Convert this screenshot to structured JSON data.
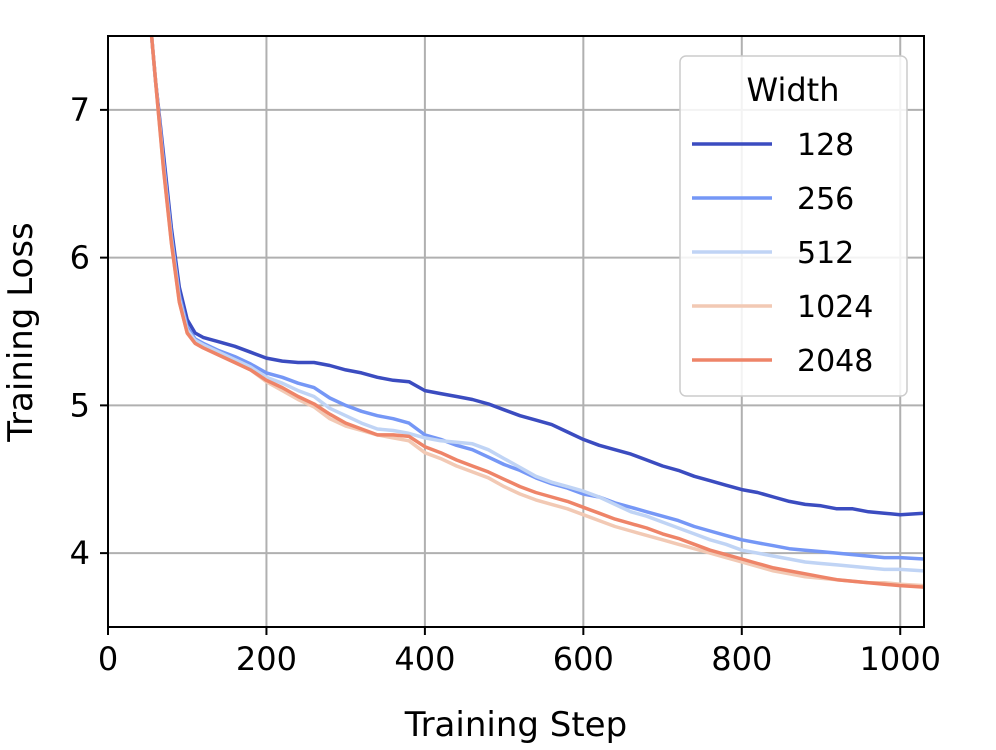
{
  "chart_data": {
    "type": "line",
    "xlabel": "Training Step",
    "ylabel": "Training Loss",
    "xlim": [
      0,
      1030
    ],
    "ylim": [
      3.5,
      7.5
    ],
    "xticks": [
      0,
      200,
      400,
      600,
      800,
      1000
    ],
    "yticks": [
      4,
      5,
      6,
      7
    ],
    "grid": true,
    "legend": {
      "title": "Width",
      "placement": "top-right"
    },
    "series": [
      {
        "name": "128",
        "color": "#3b4cc0",
        "points": [
          [
            55,
            7.5
          ],
          [
            60,
            7.2
          ],
          [
            70,
            6.7
          ],
          [
            80,
            6.2
          ],
          [
            90,
            5.8
          ],
          [
            100,
            5.58
          ],
          [
            110,
            5.49
          ],
          [
            120,
            5.46
          ],
          [
            140,
            5.43
          ],
          [
            160,
            5.4
          ],
          [
            180,
            5.36
          ],
          [
            200,
            5.32
          ],
          [
            220,
            5.3
          ],
          [
            240,
            5.29
          ],
          [
            260,
            5.29
          ],
          [
            280,
            5.27
          ],
          [
            300,
            5.24
          ],
          [
            320,
            5.22
          ],
          [
            340,
            5.19
          ],
          [
            360,
            5.17
          ],
          [
            380,
            5.16
          ],
          [
            400,
            5.1
          ],
          [
            420,
            5.08
          ],
          [
            440,
            5.06
          ],
          [
            460,
            5.04
          ],
          [
            480,
            5.01
          ],
          [
            500,
            4.97
          ],
          [
            520,
            4.93
          ],
          [
            540,
            4.9
          ],
          [
            560,
            4.87
          ],
          [
            580,
            4.82
          ],
          [
            600,
            4.77
          ],
          [
            620,
            4.73
          ],
          [
            640,
            4.7
          ],
          [
            660,
            4.67
          ],
          [
            680,
            4.63
          ],
          [
            700,
            4.59
          ],
          [
            720,
            4.56
          ],
          [
            740,
            4.52
          ],
          [
            760,
            4.49
          ],
          [
            780,
            4.46
          ],
          [
            800,
            4.43
          ],
          [
            820,
            4.41
          ],
          [
            840,
            4.38
          ],
          [
            860,
            4.35
          ],
          [
            880,
            4.33
          ],
          [
            900,
            4.32
          ],
          [
            920,
            4.3
          ],
          [
            940,
            4.3
          ],
          [
            960,
            4.28
          ],
          [
            980,
            4.27
          ],
          [
            1000,
            4.26
          ],
          [
            1030,
            4.27
          ]
        ]
      },
      {
        "name": "256",
        "color": "#7597f6",
        "points": [
          [
            55,
            7.5
          ],
          [
            60,
            7.2
          ],
          [
            70,
            6.65
          ],
          [
            80,
            6.15
          ],
          [
            90,
            5.75
          ],
          [
            100,
            5.53
          ],
          [
            110,
            5.45
          ],
          [
            120,
            5.42
          ],
          [
            140,
            5.37
          ],
          [
            160,
            5.33
          ],
          [
            180,
            5.28
          ],
          [
            200,
            5.22
          ],
          [
            220,
            5.19
          ],
          [
            240,
            5.15
          ],
          [
            260,
            5.12
          ],
          [
            280,
            5.05
          ],
          [
            300,
            5.0
          ],
          [
            320,
            4.96
          ],
          [
            340,
            4.93
          ],
          [
            360,
            4.91
          ],
          [
            380,
            4.88
          ],
          [
            400,
            4.8
          ],
          [
            420,
            4.77
          ],
          [
            440,
            4.73
          ],
          [
            460,
            4.7
          ],
          [
            480,
            4.65
          ],
          [
            500,
            4.6
          ],
          [
            520,
            4.56
          ],
          [
            540,
            4.51
          ],
          [
            560,
            4.47
          ],
          [
            580,
            4.44
          ],
          [
            600,
            4.4
          ],
          [
            620,
            4.38
          ],
          [
            640,
            4.34
          ],
          [
            660,
            4.31
          ],
          [
            680,
            4.28
          ],
          [
            700,
            4.25
          ],
          [
            720,
            4.22
          ],
          [
            740,
            4.18
          ],
          [
            760,
            4.15
          ],
          [
            780,
            4.12
          ],
          [
            800,
            4.09
          ],
          [
            820,
            4.07
          ],
          [
            840,
            4.05
          ],
          [
            860,
            4.03
          ],
          [
            880,
            4.02
          ],
          [
            900,
            4.01
          ],
          [
            920,
            4.0
          ],
          [
            940,
            3.99
          ],
          [
            960,
            3.98
          ],
          [
            980,
            3.97
          ],
          [
            1000,
            3.97
          ],
          [
            1030,
            3.96
          ]
        ]
      },
      {
        "name": "512",
        "color": "#c0d4f5",
        "points": [
          [
            55,
            7.5
          ],
          [
            60,
            7.2
          ],
          [
            70,
            6.62
          ],
          [
            80,
            6.12
          ],
          [
            90,
            5.72
          ],
          [
            100,
            5.51
          ],
          [
            110,
            5.44
          ],
          [
            120,
            5.41
          ],
          [
            140,
            5.36
          ],
          [
            160,
            5.31
          ],
          [
            180,
            5.26
          ],
          [
            200,
            5.19
          ],
          [
            220,
            5.15
          ],
          [
            240,
            5.1
          ],
          [
            260,
            5.06
          ],
          [
            280,
            4.98
          ],
          [
            300,
            4.93
          ],
          [
            320,
            4.88
          ],
          [
            340,
            4.84
          ],
          [
            360,
            4.83
          ],
          [
            380,
            4.81
          ],
          [
            400,
            4.78
          ],
          [
            420,
            4.76
          ],
          [
            440,
            4.75
          ],
          [
            460,
            4.74
          ],
          [
            480,
            4.7
          ],
          [
            500,
            4.64
          ],
          [
            520,
            4.58
          ],
          [
            540,
            4.52
          ],
          [
            560,
            4.48
          ],
          [
            580,
            4.45
          ],
          [
            600,
            4.42
          ],
          [
            620,
            4.38
          ],
          [
            640,
            4.33
          ],
          [
            660,
            4.28
          ],
          [
            680,
            4.25
          ],
          [
            700,
            4.21
          ],
          [
            720,
            4.17
          ],
          [
            740,
            4.13
          ],
          [
            760,
            4.09
          ],
          [
            780,
            4.06
          ],
          [
            800,
            4.02
          ],
          [
            820,
            4.0
          ],
          [
            840,
            3.98
          ],
          [
            860,
            3.96
          ],
          [
            880,
            3.94
          ],
          [
            900,
            3.93
          ],
          [
            920,
            3.92
          ],
          [
            940,
            3.91
          ],
          [
            960,
            3.9
          ],
          [
            980,
            3.89
          ],
          [
            1000,
            3.89
          ],
          [
            1030,
            3.88
          ]
        ]
      },
      {
        "name": "1024",
        "color": "#f2c9b4",
        "points": [
          [
            55,
            7.5
          ],
          [
            60,
            7.2
          ],
          [
            70,
            6.6
          ],
          [
            80,
            6.1
          ],
          [
            90,
            5.7
          ],
          [
            100,
            5.49
          ],
          [
            110,
            5.42
          ],
          [
            120,
            5.39
          ],
          [
            140,
            5.34
          ],
          [
            160,
            5.29
          ],
          [
            180,
            5.24
          ],
          [
            200,
            5.16
          ],
          [
            220,
            5.1
          ],
          [
            240,
            5.04
          ],
          [
            260,
            4.99
          ],
          [
            280,
            4.91
          ],
          [
            300,
            4.86
          ],
          [
            320,
            4.83
          ],
          [
            340,
            4.8
          ],
          [
            360,
            4.78
          ],
          [
            380,
            4.76
          ],
          [
            400,
            4.68
          ],
          [
            420,
            4.64
          ],
          [
            440,
            4.59
          ],
          [
            460,
            4.55
          ],
          [
            480,
            4.51
          ],
          [
            500,
            4.45
          ],
          [
            520,
            4.4
          ],
          [
            540,
            4.36
          ],
          [
            560,
            4.33
          ],
          [
            580,
            4.3
          ],
          [
            600,
            4.26
          ],
          [
            620,
            4.22
          ],
          [
            640,
            4.18
          ],
          [
            660,
            4.15
          ],
          [
            680,
            4.12
          ],
          [
            700,
            4.09
          ],
          [
            720,
            4.06
          ],
          [
            740,
            4.03
          ],
          [
            760,
            4.0
          ],
          [
            780,
            3.97
          ],
          [
            800,
            3.94
          ],
          [
            820,
            3.91
          ],
          [
            840,
            3.88
          ],
          [
            860,
            3.86
          ],
          [
            880,
            3.84
          ],
          [
            900,
            3.83
          ],
          [
            920,
            3.82
          ],
          [
            940,
            3.81
          ],
          [
            960,
            3.8
          ],
          [
            980,
            3.8
          ],
          [
            1000,
            3.79
          ],
          [
            1030,
            3.78
          ]
        ]
      },
      {
        "name": "2048",
        "color": "#ee8468",
        "points": [
          [
            55,
            7.5
          ],
          [
            60,
            7.2
          ],
          [
            70,
            6.6
          ],
          [
            80,
            6.1
          ],
          [
            90,
            5.7
          ],
          [
            100,
            5.49
          ],
          [
            110,
            5.42
          ],
          [
            120,
            5.39
          ],
          [
            140,
            5.34
          ],
          [
            160,
            5.29
          ],
          [
            180,
            5.24
          ],
          [
            200,
            5.17
          ],
          [
            220,
            5.12
          ],
          [
            240,
            5.06
          ],
          [
            260,
            5.01
          ],
          [
            280,
            4.94
          ],
          [
            300,
            4.88
          ],
          [
            320,
            4.84
          ],
          [
            340,
            4.8
          ],
          [
            360,
            4.8
          ],
          [
            380,
            4.79
          ],
          [
            400,
            4.72
          ],
          [
            420,
            4.68
          ],
          [
            440,
            4.63
          ],
          [
            460,
            4.59
          ],
          [
            480,
            4.55
          ],
          [
            500,
            4.5
          ],
          [
            520,
            4.45
          ],
          [
            540,
            4.41
          ],
          [
            560,
            4.38
          ],
          [
            580,
            4.35
          ],
          [
            600,
            4.31
          ],
          [
            620,
            4.27
          ],
          [
            640,
            4.23
          ],
          [
            660,
            4.2
          ],
          [
            680,
            4.17
          ],
          [
            700,
            4.13
          ],
          [
            720,
            4.1
          ],
          [
            740,
            4.06
          ],
          [
            760,
            4.02
          ],
          [
            780,
            3.99
          ],
          [
            800,
            3.96
          ],
          [
            820,
            3.93
          ],
          [
            840,
            3.9
          ],
          [
            860,
            3.88
          ],
          [
            880,
            3.86
          ],
          [
            900,
            3.84
          ],
          [
            920,
            3.82
          ],
          [
            940,
            3.81
          ],
          [
            960,
            3.8
          ],
          [
            980,
            3.79
          ],
          [
            1000,
            3.78
          ],
          [
            1030,
            3.77
          ]
        ]
      }
    ]
  }
}
